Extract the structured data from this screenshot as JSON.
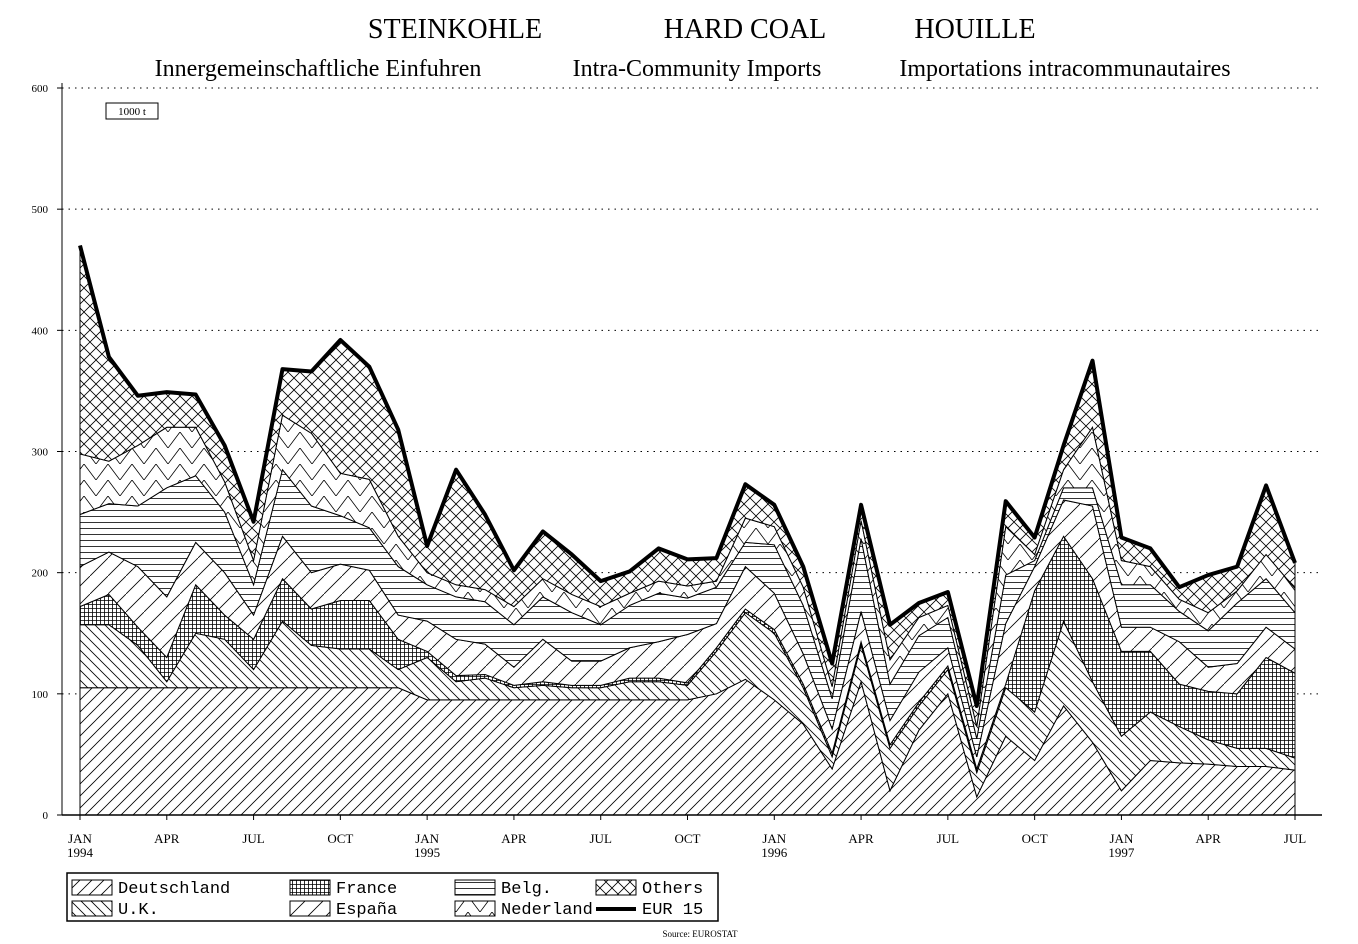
{
  "chart_data": {
    "type": "stacked_area",
    "title": [
      "STEINKOHLE",
      "HARD COAL",
      "HOUILLE"
    ],
    "subtitle": [
      "Innergemeinschaftliche Einfuhren",
      "Intra-Community Imports",
      "Importations intracommunautaires"
    ],
    "unit": "1000 t",
    "source": "Source: EUROSTAT",
    "categories": [
      "JAN\n1994",
      null,
      null,
      "APR",
      null,
      null,
      "JUL",
      null,
      null,
      "OCT",
      null,
      null,
      "JAN\n1995",
      null,
      null,
      "APR",
      null,
      null,
      "JUL",
      null,
      null,
      "OCT",
      null,
      null,
      "JAN\n1996",
      null,
      null,
      "APR",
      null,
      null,
      "JUL",
      null,
      null,
      "OCT",
      null,
      null,
      "JAN\n1997",
      null,
      null,
      "APR",
      null,
      null,
      "JUL"
    ],
    "ylim": [
      0,
      600
    ],
    "yticks": [
      0,
      100,
      200,
      300,
      400,
      500,
      600
    ],
    "grid": true,
    "series": [
      {
        "name": "Deutschland",
        "color": "#000000",
        "pattern": "diag-up",
        "values": [
          105,
          105,
          105,
          105,
          105,
          105,
          105,
          105,
          105,
          105,
          105,
          105,
          95,
          95,
          95,
          95,
          95,
          95,
          95,
          95,
          95,
          95,
          100,
          112,
          95,
          75,
          38,
          110,
          20,
          70,
          100,
          15,
          65,
          45,
          90,
          60,
          20,
          45,
          43,
          42,
          40,
          40,
          37
        ]
      },
      {
        "name": "U.K.",
        "color": "#000000",
        "pattern": "diag-down",
        "values": [
          52,
          52,
          35,
          5,
          45,
          40,
          15,
          55,
          35,
          32,
          32,
          15,
          35,
          15,
          18,
          10,
          12,
          10,
          10,
          15,
          15,
          12,
          35,
          55,
          55,
          30,
          10,
          30,
          35,
          20,
          20,
          20,
          40,
          40,
          70,
          50,
          45,
          40,
          30,
          20,
          15,
          15,
          10
        ]
      },
      {
        "name": "France",
        "color": "#000000",
        "pattern": "grid",
        "values": [
          15,
          25,
          15,
          20,
          40,
          20,
          25,
          35,
          30,
          40,
          40,
          25,
          5,
          5,
          3,
          2,
          3,
          2,
          2,
          3,
          3,
          2,
          3,
          3,
          3,
          3,
          3,
          3,
          3,
          3,
          3,
          3,
          3,
          100,
          70,
          85,
          70,
          50,
          35,
          40,
          45,
          75,
          70
        ]
      },
      {
        "name": "España",
        "color": "#000000",
        "pattern": "diag-up-wide",
        "values": [
          33,
          35,
          50,
          50,
          35,
          35,
          20,
          35,
          30,
          30,
          25,
          20,
          25,
          30,
          25,
          15,
          35,
          20,
          20,
          25,
          30,
          40,
          20,
          35,
          30,
          25,
          20,
          25,
          20,
          25,
          15,
          10,
          50,
          20,
          30,
          60,
          20,
          20,
          35,
          20,
          25,
          25,
          20
        ]
      },
      {
        "name": "Belg.",
        "color": "#000000",
        "pattern": "horizontal",
        "values": [
          43,
          40,
          50,
          90,
          55,
          50,
          25,
          55,
          55,
          40,
          35,
          40,
          30,
          35,
          35,
          35,
          35,
          40,
          30,
          35,
          40,
          30,
          30,
          20,
          40,
          40,
          25,
          60,
          30,
          30,
          25,
          15,
          40,
          5,
          10,
          15,
          35,
          35,
          25,
          30,
          50,
          40,
          30
        ]
      },
      {
        "name": "Nederland",
        "color": "#000000",
        "pattern": "zigzag",
        "values": [
          50,
          35,
          50,
          50,
          40,
          25,
          20,
          45,
          60,
          35,
          40,
          25,
          10,
          10,
          10,
          15,
          15,
          15,
          15,
          10,
          10,
          10,
          5,
          20,
          15,
          15,
          10,
          15,
          20,
          15,
          10,
          10,
          40,
          5,
          15,
          50,
          20,
          15,
          10,
          15,
          10,
          20,
          20
        ]
      },
      {
        "name": "Others",
        "color": "#000000",
        "pattern": "crosshatch",
        "values": [
          172,
          86,
          41,
          29,
          27,
          30,
          32,
          38,
          51,
          110,
          93,
          88,
          22,
          95,
          62,
          30,
          39,
          33,
          21,
          18,
          27,
          22,
          19,
          28,
          18,
          17,
          19,
          13,
          29,
          12,
          11,
          17,
          21,
          14,
          20,
          55,
          19,
          15,
          10,
          31,
          20,
          57,
          21
        ]
      },
      {
        "name": "EUR 15",
        "color": "#000000",
        "type": "line",
        "values": [
          470,
          378,
          346,
          349,
          347,
          305,
          242,
          368,
          366,
          392,
          370,
          318,
          222,
          285,
          248,
          202,
          234,
          215,
          193,
          201,
          220,
          211,
          212,
          273,
          256,
          205,
          125,
          256,
          157,
          175,
          184,
          90,
          259,
          229,
          305,
          375,
          229,
          220,
          188,
          198,
          205,
          272,
          208
        ]
      }
    ]
  }
}
